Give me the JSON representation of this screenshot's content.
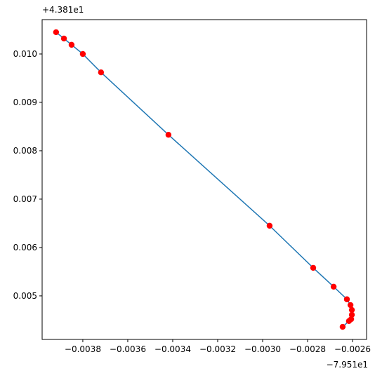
{
  "chart_data": {
    "type": "line",
    "x_offset_label": "−7.951e1",
    "y_offset_label": "+4.381e1",
    "x": [
      -0.003919,
      -0.003884,
      -0.00385,
      -0.0038,
      -0.003719,
      -0.003419,
      -0.002969,
      -0.002775,
      -0.002684,
      -0.002625,
      -0.002609,
      -0.002603,
      -0.002603,
      -0.002606,
      -0.002616,
      -0.002644
    ],
    "series": [
      {
        "color": "#1f77b4",
        "marker_color": "#ff0000",
        "values": [
          0.01045,
          0.01032,
          0.01019,
          0.01,
          0.00962,
          0.00833,
          0.00645,
          0.00558,
          0.00519,
          0.00493,
          0.00481,
          0.00471,
          0.00461,
          0.00452,
          0.00448,
          0.00436
        ]
      }
    ],
    "xlim": [
      -0.003981,
      -0.0025375
    ],
    "ylim": [
      0.0041,
      0.01071
    ],
    "xticks": [
      {
        "value": -0.0038,
        "label": "−0.0038"
      },
      {
        "value": -0.0036,
        "label": "−0.0036"
      },
      {
        "value": -0.0034,
        "label": "−0.0034"
      },
      {
        "value": -0.0032,
        "label": "−0.0032"
      },
      {
        "value": -0.003,
        "label": "−0.0030"
      },
      {
        "value": -0.0028,
        "label": "−0.0028"
      },
      {
        "value": -0.0026,
        "label": "−0.0026"
      }
    ],
    "yticks": [
      0.005,
      0.006,
      0.007,
      0.008,
      0.009,
      {
        "value": 0.01,
        "label": "0.010"
      }
    ],
    "grid": false
  }
}
